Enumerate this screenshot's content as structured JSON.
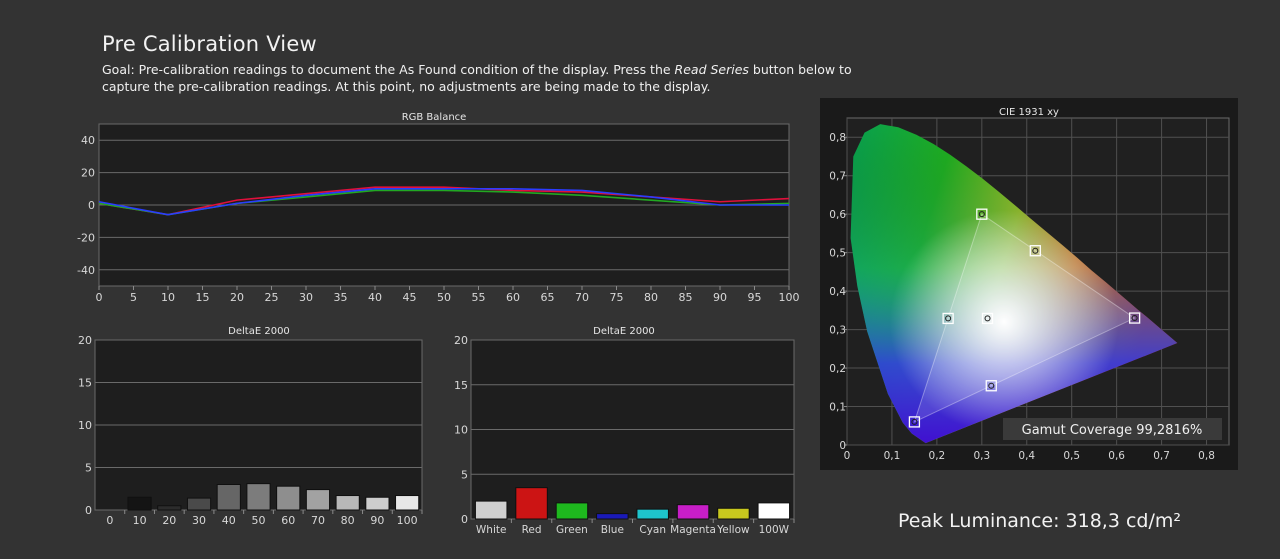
{
  "header": {
    "title": "Pre Calibration View",
    "goal_prefix": "Goal: Pre-calibration readings to document the As Found condition of the display. Press the ",
    "goal_emphasis": "Read Series",
    "goal_suffix": " button below to capture the pre-calibration readings. At this point, no adjustments are being made to the display."
  },
  "peak_luminance": "Peak Luminance: 318,3 cd/m²",
  "chart_data": [
    {
      "type": "line",
      "title": "RGB Balance",
      "x": [
        0,
        10,
        20,
        30,
        40,
        50,
        60,
        70,
        80,
        90,
        100
      ],
      "xticks": [
        "0",
        "5",
        "10",
        "15",
        "20",
        "25",
        "30",
        "35",
        "40",
        "45",
        "50",
        "55",
        "60",
        "65",
        "70",
        "75",
        "80",
        "85",
        "90",
        "95",
        "100"
      ],
      "yticks": [
        "40",
        "20",
        "0",
        "-20",
        "-40"
      ],
      "ylim": [
        -50,
        50
      ],
      "xlim": [
        0,
        100
      ],
      "series": [
        {
          "color": "#e0103c",
          "values": [
            1,
            -6,
            3,
            7,
            11,
            11,
            9,
            8,
            5,
            2,
            4
          ]
        },
        {
          "color": "#22a822",
          "values": [
            1,
            -6,
            1,
            5,
            9,
            9,
            8,
            6,
            3,
            0,
            1
          ]
        },
        {
          "color": "#2a3cff",
          "values": [
            2,
            -6,
            1,
            6,
            10,
            10,
            10,
            9,
            5,
            0,
            0
          ]
        }
      ]
    },
    {
      "type": "bar",
      "title": "DeltaE 2000",
      "categories": [
        "0",
        "10",
        "20",
        "30",
        "40",
        "50",
        "60",
        "70",
        "80",
        "90",
        "100"
      ],
      "values": [
        0,
        1.5,
        0.5,
        1.4,
        3.0,
        3.1,
        2.8,
        2.4,
        1.7,
        1.5,
        1.7
      ],
      "colors": [
        "#000000",
        "#141414",
        "#2c2c2c",
        "#4a4a4a",
        "#666666",
        "#7c7c7c",
        "#8e8e8e",
        "#a2a2a2",
        "#b8b8b8",
        "#cdcdcd",
        "#e8e8e8"
      ],
      "yticks": [
        "20",
        "15",
        "10",
        "5",
        "0"
      ],
      "ylim": [
        0,
        20
      ]
    },
    {
      "type": "bar",
      "title": "DeltaE 2000",
      "categories": [
        "White",
        "Red",
        "Green",
        "Blue",
        "Cyan",
        "Magenta",
        "Yellow",
        "100W"
      ],
      "values": [
        2.0,
        3.5,
        1.8,
        0.6,
        1.1,
        1.6,
        1.2,
        1.8
      ],
      "colors": [
        "#cfcfcf",
        "#cc1414",
        "#1eb81e",
        "#1a1ab8",
        "#1ec4cc",
        "#c81ec8",
        "#c8c81e",
        "#ffffff"
      ],
      "yticks": [
        "20",
        "15",
        "10",
        "5",
        "0"
      ],
      "ylim": [
        0,
        20
      ]
    },
    {
      "type": "scatter",
      "title": "CIE 1931 xy",
      "xlim": [
        0,
        0.85
      ],
      "ylim": [
        0,
        0.85
      ],
      "xticks": [
        "0",
        "0,1",
        "0,2",
        "0,3",
        "0,4",
        "0,5",
        "0,6",
        "0,7",
        "0,8"
      ],
      "yticks": [
        "0,8",
        "0,7",
        "0,6",
        "0,5",
        "0,4",
        "0,3",
        "0,2",
        "0,1",
        "0"
      ],
      "targets": [
        {
          "x": 0.64,
          "y": 0.33
        },
        {
          "x": 0.3,
          "y": 0.6
        },
        {
          "x": 0.15,
          "y": 0.06
        },
        {
          "x": 0.3127,
          "y": 0.329
        },
        {
          "x": 0.225,
          "y": 0.329
        },
        {
          "x": 0.321,
          "y": 0.154
        },
        {
          "x": 0.419,
          "y": 0.505
        }
      ],
      "gamut_coverage": "Gamut Coverage 99,2816%"
    }
  ]
}
